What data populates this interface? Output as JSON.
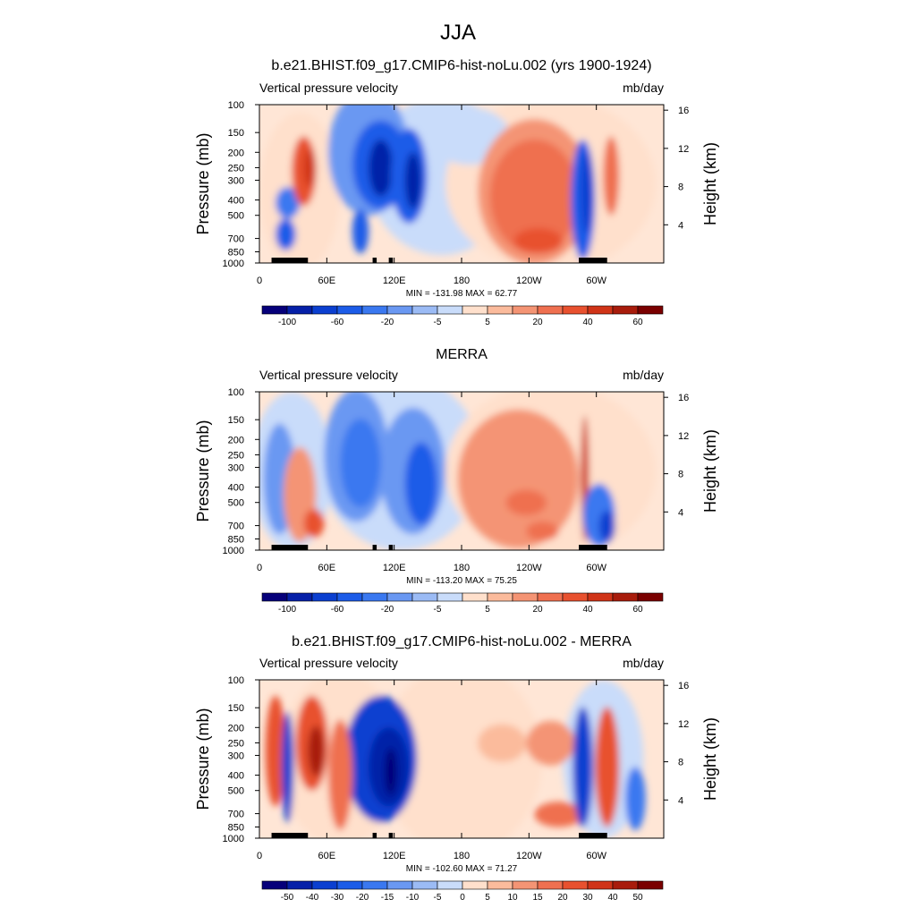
{
  "main_title": "JJA",
  "chart_data": [
    {
      "type": "heatmap",
      "title": "b.e21.BHIST.f09_g17.CMIP6-hist-noLu.002 (yrs 1900-1924)",
      "left_label": "Vertical pressure velocity",
      "right_label": "mb/day",
      "ylabel": "Pressure (mb)",
      "y2label": "Height (km)",
      "x_ticks": [
        "0",
        "60E",
        "120E",
        "180",
        "120W",
        "60W"
      ],
      "y_ticks": [
        "100",
        "150",
        "200",
        "250",
        "300",
        "400",
        "500",
        "700",
        "850",
        "1000"
      ],
      "y2_ticks": [
        "4",
        "8",
        "12",
        "16"
      ],
      "min": -131.98,
      "max": 62.77,
      "stats_text": "MIN = -131.98  MAX =  62.77",
      "colorbar_labels": [
        "-100",
        "-60",
        "-20",
        "-5",
        "5",
        "20",
        "40",
        "60"
      ]
    },
    {
      "type": "heatmap",
      "title": "MERRA",
      "left_label": "Vertical pressure velocity",
      "right_label": "mb/day",
      "ylabel": "Pressure (mb)",
      "y2label": "Height (km)",
      "x_ticks": [
        "0",
        "60E",
        "120E",
        "180",
        "120W",
        "60W"
      ],
      "y_ticks": [
        "100",
        "150",
        "200",
        "250",
        "300",
        "400",
        "500",
        "700",
        "850",
        "1000"
      ],
      "y2_ticks": [
        "4",
        "8",
        "12",
        "16"
      ],
      "min": -113.2,
      "max": 75.25,
      "stats_text": "MIN = -113.20  MAX =  75.25",
      "colorbar_labels": [
        "-100",
        "-60",
        "-20",
        "-5",
        "5",
        "20",
        "40",
        "60"
      ]
    },
    {
      "type": "heatmap",
      "title": "b.e21.BHIST.f09_g17.CMIP6-hist-noLu.002 - MERRA",
      "left_label": "Vertical pressure velocity",
      "right_label": "mb/day",
      "ylabel": "Pressure (mb)",
      "y2label": "Height (km)",
      "x_ticks": [
        "0",
        "60E",
        "120E",
        "180",
        "120W",
        "60W"
      ],
      "y_ticks": [
        "100",
        "150",
        "200",
        "250",
        "300",
        "400",
        "500",
        "700",
        "850",
        "1000"
      ],
      "y2_ticks": [
        "4",
        "8",
        "12",
        "16"
      ],
      "min": -102.6,
      "max": 71.27,
      "stats_text": "MIN = -102.60  MAX =  71.27",
      "colorbar_labels": [
        "-50",
        "-40",
        "-30",
        "-20",
        "-15",
        "-10",
        "-5",
        "0",
        "5",
        "10",
        "15",
        "20",
        "30",
        "40",
        "50"
      ]
    }
  ],
  "colorbar_colors": [
    "#06007a",
    "#0620a8",
    "#0b3fd0",
    "#1c5ce8",
    "#3a78f0",
    "#6a98f2",
    "#9bbbf5",
    "#c9dcfa",
    "#ffe0cc",
    "#fbbb9c",
    "#f49474",
    "#ef7050",
    "#e8512f",
    "#d03418",
    "#a81c0c",
    "#7a0000"
  ]
}
